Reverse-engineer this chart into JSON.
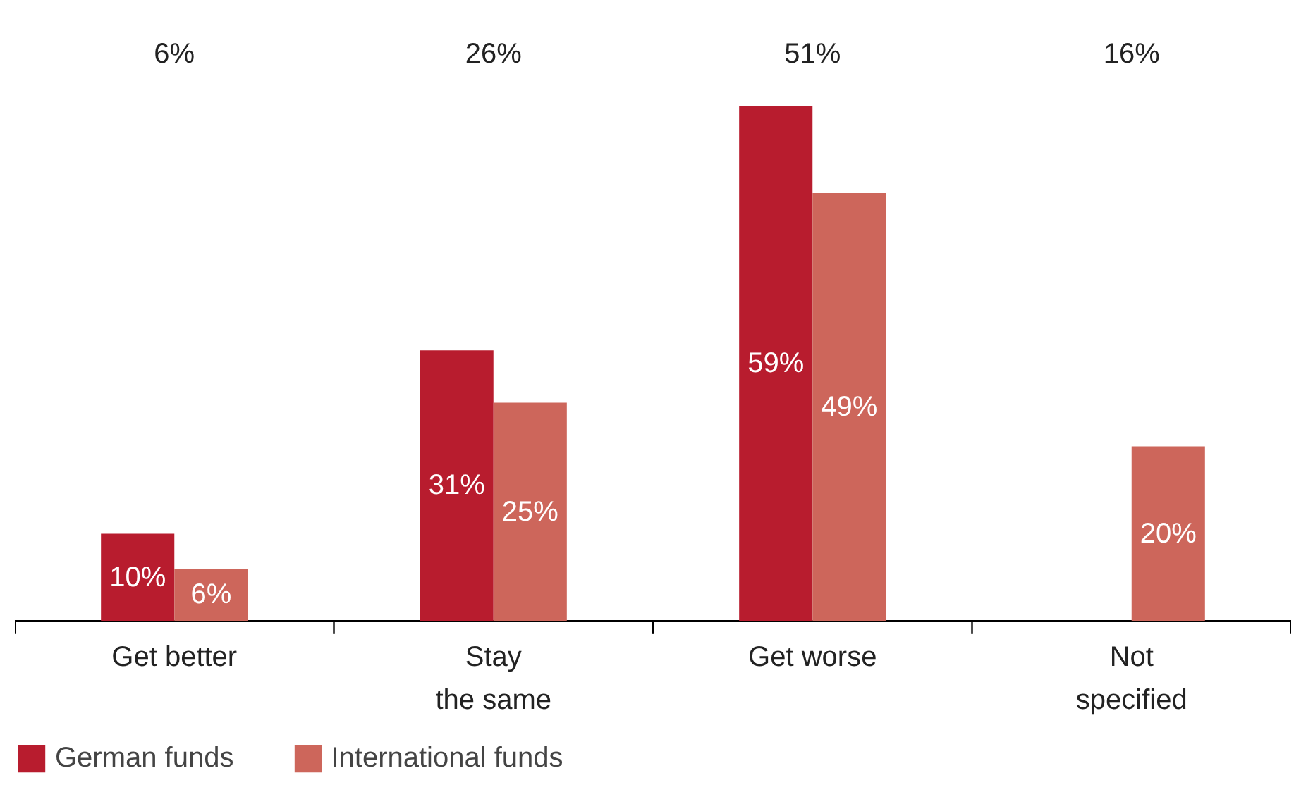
{
  "chart_data": {
    "type": "bar",
    "categories": [
      "Get better",
      "Stay\nthe same",
      "Get worse",
      "Not\nspecified"
    ],
    "series": [
      {
        "name": "German funds",
        "color": "#b81c2e",
        "values": [
          10,
          31,
          59,
          null
        ],
        "value_labels": [
          "10%",
          "31%",
          "59%",
          null
        ]
      },
      {
        "name": "International funds",
        "color": "#cd665b",
        "values": [
          6,
          25,
          49,
          20
        ],
        "value_labels": [
          "6%",
          "25%",
          "49%",
          "20%"
        ]
      }
    ],
    "legend": "bottom left",
    "annotations": [
      "6%",
      "26%",
      "51%",
      "16%"
    ]
  }
}
